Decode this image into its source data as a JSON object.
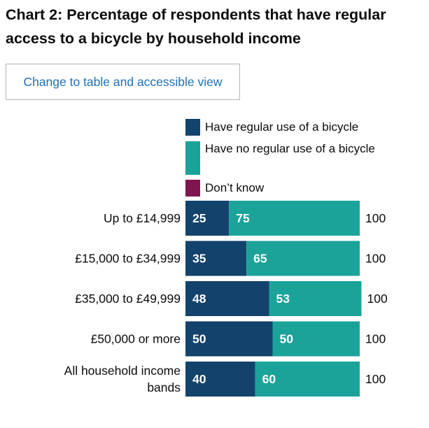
{
  "toggle_label": "Change to table and accessible view",
  "chart_data": {
    "type": "bar",
    "orientation": "horizontal",
    "stacked": true,
    "title": "Chart 2: Percentage of respondents that have regular access to a bicycle by household income",
    "categories": [
      "Up to £14,999",
      "£15,000 to £34,999",
      "£35,000 to £49,999",
      "£50,000 or more",
      "All household income bands"
    ],
    "series": [
      {
        "name": "Have regular use of a bicycle",
        "color": "#12436d",
        "values": [
          25,
          35,
          48,
          50,
          40
        ]
      },
      {
        "name": "Have no regular use of a bicycle",
        "color": "#1ba39a",
        "values": [
          75,
          65,
          53,
          50,
          60
        ]
      },
      {
        "name": "Don’t know",
        "color": "#801650",
        "values": [
          0,
          0,
          0,
          0,
          0
        ]
      }
    ],
    "totals": [
      100,
      100,
      100,
      100,
      100
    ],
    "xlim": [
      0,
      100
    ],
    "legend_position": "top"
  }
}
